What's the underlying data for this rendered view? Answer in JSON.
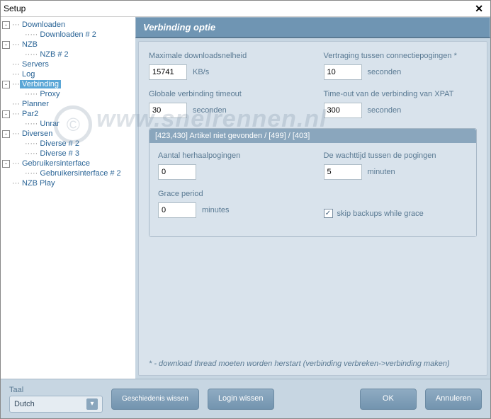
{
  "window": {
    "title": "Setup"
  },
  "tree": [
    {
      "label": "Downloaden",
      "expanded": true,
      "children": [
        {
          "label": "Downloaden # 2"
        }
      ]
    },
    {
      "label": "NZB",
      "expanded": true,
      "children": [
        {
          "label": "NZB # 2"
        }
      ]
    },
    {
      "label": "Servers"
    },
    {
      "label": "Log"
    },
    {
      "label": "Verbinding",
      "expanded": true,
      "selected": true,
      "children": [
        {
          "label": "Proxy"
        }
      ]
    },
    {
      "label": "Planner"
    },
    {
      "label": "Par2",
      "expanded": true,
      "children": [
        {
          "label": "Unrar"
        }
      ]
    },
    {
      "label": "Diversen",
      "expanded": true,
      "children": [
        {
          "label": "Diverse # 2"
        },
        {
          "label": "Diverse # 3"
        }
      ]
    },
    {
      "label": "Gebruikersinterface",
      "expanded": true,
      "children": [
        {
          "label": "Gebruikersinterface # 2"
        }
      ]
    },
    {
      "label": "NZB Play"
    }
  ],
  "panel": {
    "title": "Verbinding optie",
    "max_speed_label": "Maximale downloadsnelheid",
    "max_speed_value": "15741",
    "max_speed_unit": "KB/s",
    "retry_delay_label": "Vertraging tussen connectiepogingen *",
    "retry_delay_value": "10",
    "retry_delay_unit": "seconden",
    "global_timeout_label": "Globale verbinding timeout",
    "global_timeout_value": "30",
    "global_timeout_unit": "seconden",
    "xpat_timeout_label": "Time-out van de verbinding van XPAT",
    "xpat_timeout_value": "300",
    "xpat_timeout_unit": "seconden",
    "group_title": "[423,430] Artikel niet gevonden / [499] / [403]",
    "retries_label": "Aantal herhaalpogingen",
    "retries_value": "0",
    "wait_label": "De wachttijd tussen de pogingen",
    "wait_value": "5",
    "wait_unit": "minuten",
    "grace_label": "Grace period",
    "grace_value": "0",
    "grace_unit": "minutes",
    "skip_label": "skip backups while grace",
    "skip_checked": true,
    "footnote": "* - download thread moeten worden herstart (verbinding verbreken->verbinding maken)"
  },
  "footer": {
    "lang_label": "Taal",
    "lang_value": "Dutch",
    "btn_history": "Geschiedenis wissen",
    "btn_login": "Login wissen",
    "btn_ok": "OK",
    "btn_cancel": "Annuleren"
  },
  "watermark": "www.snelrennen.nl"
}
